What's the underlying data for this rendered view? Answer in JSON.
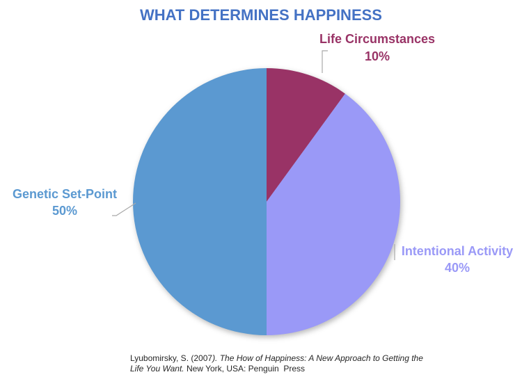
{
  "title": "WHAT DETERMINES HAPPINESS",
  "colors": {
    "title": "#4472C4",
    "leader_line": "#A9A9A9",
    "citation_text": "#262626",
    "background": "#FFFFFF"
  },
  "chart_data": {
    "type": "pie",
    "title": "WHAT DETERMINES HAPPINESS",
    "start_angle_deg": 0,
    "direction": "clockwise",
    "legend_position": "none",
    "label_style": "outside-with-leader-lines",
    "slices": [
      {
        "label": "Life Circumstances",
        "value_pct": 10,
        "display": "10%",
        "color": "#993366"
      },
      {
        "label": "Intentional Activity",
        "value_pct": 40,
        "display": "40%",
        "color": "#9A99F7"
      },
      {
        "label": "Genetic Set-Point",
        "value_pct": 50,
        "display": "50%",
        "color": "#5B99D1"
      }
    ]
  },
  "citation": {
    "line1_regular": "Lyubomirsky, S. (2007",
    "line1_italic": "). The How of Happiness: A New Approach to Getting the",
    "line2_italic": "Life You Want.",
    "line2_regular": " New York, USA: Penguin  Press"
  }
}
